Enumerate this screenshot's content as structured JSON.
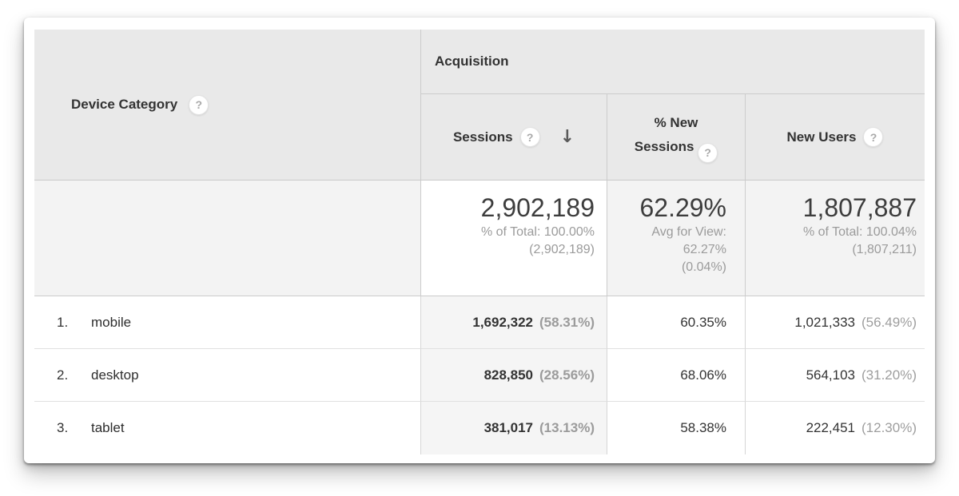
{
  "icons": {
    "help": "?",
    "sort_descending": "↓"
  },
  "colors": {
    "header_bg": "#e9e9e9",
    "summary_bg": "#f3f3f3",
    "sorted_column_bg": "#f5f5f5",
    "text_dark": "#333333",
    "text_gray": "#9b9b9b",
    "border_strong": "#cccccc",
    "border_light": "#e0e0e0"
  },
  "table": {
    "dimension_column": {
      "label": "Device Category"
    },
    "group_header": {
      "label": "Acquisition"
    },
    "metric_columns": {
      "sessions": {
        "label": "Sessions",
        "sorted": "descending"
      },
      "pct_new_sessions": {
        "label": "% New Sessions"
      },
      "new_users": {
        "label": "New Users"
      }
    },
    "summary": {
      "sessions": {
        "value": "2,902,189",
        "context_line1": "% of Total: 100.00%",
        "context_line2": "(2,902,189)"
      },
      "pct_new_sessions": {
        "value": "62.29%",
        "context_line1": "Avg for View:",
        "context_line2": "62.27%",
        "context_line3": "(0.04%)"
      },
      "new_users": {
        "value": "1,807,887",
        "context_line1": "% of Total: 100.04%",
        "context_line2": "(1,807,211)"
      }
    },
    "rows": [
      {
        "rank": "1.",
        "device": "mobile",
        "sessions": "1,692,322",
        "sessions_share": "(58.31%)",
        "pct_new_sessions": "60.35%",
        "new_users": "1,021,333",
        "new_users_share": "(56.49%)"
      },
      {
        "rank": "2.",
        "device": "desktop",
        "sessions": "828,850",
        "sessions_share": "(28.56%)",
        "pct_new_sessions": "68.06%",
        "new_users": "564,103",
        "new_users_share": "(31.20%)"
      },
      {
        "rank": "3.",
        "device": "tablet",
        "sessions": "381,017",
        "sessions_share": "(13.13%)",
        "pct_new_sessions": "58.38%",
        "new_users": "222,451",
        "new_users_share": "(12.30%)"
      }
    ]
  }
}
